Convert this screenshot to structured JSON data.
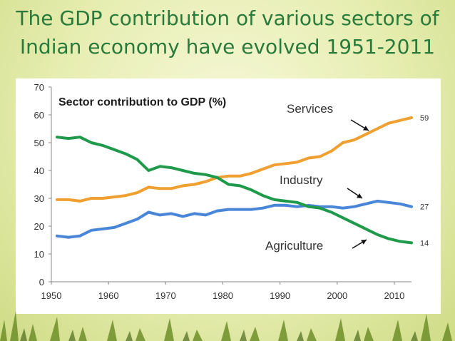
{
  "slide": {
    "title_line1": "The GDP contribution of various sectors of",
    "title_line2": "Indian economy have evolved  1951-2011"
  },
  "chart_data": {
    "type": "line",
    "title": "Sector contribution to GDP (%)",
    "xlabel": "",
    "ylabel": "",
    "xlim": [
      1950,
      2013
    ],
    "ylim": [
      0,
      70
    ],
    "xticks": [
      1950,
      1960,
      1970,
      1980,
      1990,
      2000,
      2010
    ],
    "yticks": [
      0,
      10,
      20,
      30,
      40,
      50,
      60,
      70
    ],
    "grid": false,
    "series": [
      {
        "name": "Services",
        "color": "#f0a030",
        "end_label": "59",
        "x": [
          1951,
          1953,
          1955,
          1957,
          1959,
          1961,
          1963,
          1965,
          1967,
          1969,
          1971,
          1973,
          1975,
          1977,
          1979,
          1981,
          1983,
          1985,
          1987,
          1989,
          1991,
          1993,
          1995,
          1997,
          1999,
          2001,
          2003,
          2005,
          2007,
          2009,
          2011,
          2013
        ],
        "y": [
          29.5,
          29.5,
          29,
          30,
          30,
          30.5,
          31,
          32,
          34,
          33.5,
          33.5,
          34.5,
          35,
          36,
          37.5,
          38,
          38,
          39,
          40.5,
          42,
          42.5,
          43,
          44.5,
          45,
          47,
          50,
          51,
          53,
          55,
          57,
          58,
          59
        ]
      },
      {
        "name": "Industry",
        "color": "#4a86d8",
        "end_label": "27",
        "x": [
          1951,
          1953,
          1955,
          1957,
          1959,
          1961,
          1963,
          1965,
          1967,
          1969,
          1971,
          1973,
          1975,
          1977,
          1979,
          1981,
          1983,
          1985,
          1987,
          1989,
          1991,
          1993,
          1995,
          1997,
          1999,
          2001,
          2003,
          2005,
          2007,
          2009,
          2011,
          2013
        ],
        "y": [
          16.5,
          16,
          16.5,
          18.5,
          19,
          19.5,
          21,
          22.5,
          25,
          24,
          24.5,
          23.5,
          24.5,
          24,
          25.5,
          26,
          26,
          26,
          26.5,
          27.5,
          27.5,
          27,
          27.5,
          27,
          27,
          26.5,
          27,
          28,
          29,
          28.5,
          28,
          27
        ]
      },
      {
        "name": "Agriculture",
        "color": "#1e9a4a",
        "end_label": "14",
        "x": [
          1951,
          1953,
          1955,
          1957,
          1959,
          1961,
          1963,
          1965,
          1967,
          1969,
          1971,
          1973,
          1975,
          1977,
          1979,
          1981,
          1983,
          1985,
          1987,
          1989,
          1991,
          1993,
          1995,
          1997,
          1999,
          2001,
          2003,
          2005,
          2007,
          2009,
          2011,
          2013
        ],
        "y": [
          52,
          51.5,
          52,
          50,
          49,
          47.5,
          46,
          44,
          40,
          41.5,
          41,
          40,
          39,
          38.5,
          37.5,
          35,
          34.5,
          33,
          31,
          29.5,
          29,
          28.5,
          27,
          26.5,
          25,
          23,
          21,
          19,
          17,
          15.5,
          14.5,
          14
        ]
      }
    ],
    "annotations": [
      {
        "text": "Services",
        "series": "Services"
      },
      {
        "text": "Industry",
        "series": "Industry"
      },
      {
        "text": "Agriculture",
        "series": "Agriculture"
      }
    ]
  }
}
